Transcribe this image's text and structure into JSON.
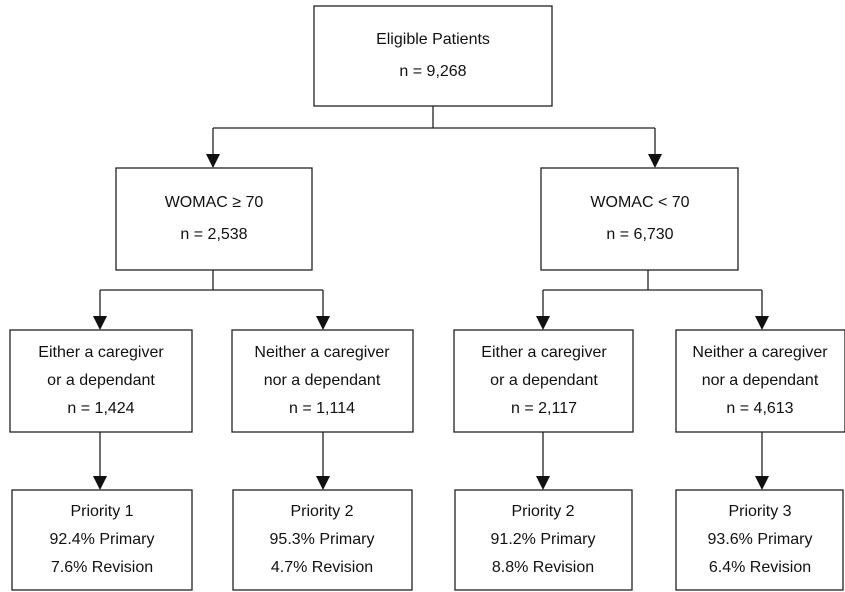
{
  "nodes": [
    {
      "lines": [
        "Eligible Patients",
        "n = 9,268"
      ]
    },
    {
      "lines": [
        "WOMAC ≥ 70",
        "n = 2,538"
      ]
    },
    {
      "lines": [
        "WOMAC < 70",
        "n = 6,730"
      ]
    },
    {
      "lines": [
        "Either a caregiver",
        "or a dependant",
        "n = 1,424"
      ]
    },
    {
      "lines": [
        "Neither a caregiver",
        "nor a dependant",
        "n = 1,114"
      ]
    },
    {
      "lines": [
        "Either a caregiver",
        "or a dependant",
        "n = 2,117"
      ]
    },
    {
      "lines": [
        "Neither a caregiver",
        "nor a dependant",
        "n = 4,613"
      ]
    },
    {
      "lines": [
        "Priority 1",
        "92.4% Primary",
        "7.6% Revision"
      ]
    },
    {
      "lines": [
        "Priority 2",
        "95.3% Primary",
        "4.7% Revision"
      ]
    },
    {
      "lines": [
        "Priority 2",
        "91.2% Primary",
        "8.8% Revision"
      ]
    },
    {
      "lines": [
        "Priority 3",
        "93.6% Primary",
        "6.4% Revision"
      ]
    }
  ]
}
